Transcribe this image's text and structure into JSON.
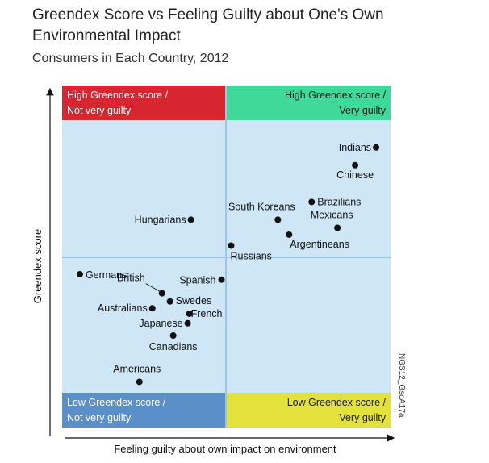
{
  "chart_data": {
    "type": "scatter",
    "title": "Greendex Score vs Feeling Guilty about One's Own Environmental Impact",
    "subtitle": "Consumers in Each Country, 2012",
    "xlabel": "Feeling guilty about own impact on environment",
    "ylabel": "Greendex score",
    "source_code": "NGS12_GscA17a",
    "quadrants": {
      "top_left": {
        "line1": "High Greendex score /",
        "line2": "Not very guilty",
        "color": "#d7262f",
        "text_color": "#ffffff"
      },
      "top_right": {
        "line1": "High Greendex score /",
        "line2": "Very guilty",
        "color": "#3fd99a",
        "text_color": "#1a1a1a"
      },
      "bottom_left": {
        "line1": "Low Greendex score /",
        "line2": "Not very guilty",
        "color": "#5b8fc9",
        "text_color": "#ffffff"
      },
      "bottom_right": {
        "line1": "Low Greendex score /",
        "line2": "Very guilty",
        "color": "#e3e23c",
        "text_color": "#1a1a1a"
      }
    },
    "plot_background": "#cfe6f7",
    "xlim": [
      0,
      100
    ],
    "ylim": [
      0,
      100
    ],
    "points": [
      {
        "label": "Indians",
        "x": 96.5,
        "y": 90.0,
        "anchor": "end"
      },
      {
        "label": "Chinese",
        "x": 90.0,
        "y": 83.5,
        "anchor": "middle"
      },
      {
        "label": "Brazilians",
        "x": 76.5,
        "y": 70.0,
        "anchor": "start"
      },
      {
        "label": "South Koreans",
        "x": 66.0,
        "y": 63.5,
        "anchor": "middle"
      },
      {
        "label": "Mexicans",
        "x": 84.5,
        "y": 60.5,
        "anchor": "middle"
      },
      {
        "label": "Argentineans",
        "x": 69.5,
        "y": 58.0,
        "anchor": "start"
      },
      {
        "label": "Hungarians",
        "x": 39.0,
        "y": 63.5,
        "anchor": "end"
      },
      {
        "label": "Russians",
        "x": 51.5,
        "y": 54.0,
        "anchor": "start"
      },
      {
        "label": "Germans",
        "x": 4.5,
        "y": 43.5,
        "anchor": "start"
      },
      {
        "label": "Spanish",
        "x": 48.5,
        "y": 41.5,
        "anchor": "end"
      },
      {
        "label": "British",
        "x": 30.0,
        "y": 36.5,
        "anchor": "end"
      },
      {
        "label": "Swedes",
        "x": 32.5,
        "y": 33.5,
        "anchor": "start"
      },
      {
        "label": "Australians",
        "x": 27.0,
        "y": 31.0,
        "anchor": "end"
      },
      {
        "label": "French",
        "x": 38.5,
        "y": 29.0,
        "anchor": "start"
      },
      {
        "label": "Japanese",
        "x": 38.0,
        "y": 25.5,
        "anchor": "end"
      },
      {
        "label": "Canadians",
        "x": 33.5,
        "y": 21.0,
        "anchor": "middle"
      },
      {
        "label": "Americans",
        "x": 23.0,
        "y": 4.0,
        "anchor": "middle"
      }
    ]
  }
}
